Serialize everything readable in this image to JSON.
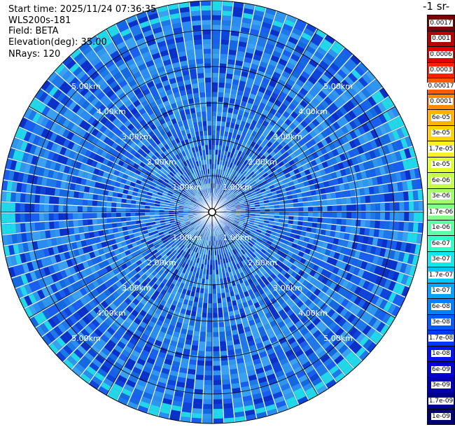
{
  "header": {
    "start_time": "Start time: 2025/11/24 07:36:35",
    "device": "WLS200s-181",
    "field": "Field: BETA",
    "elevation": "Elevation(deg): 35.00",
    "nrays": "NRays: 120"
  },
  "colorbar": {
    "unit": "-1 sr-",
    "labels": [
      "0.0017",
      "0.001",
      "0.0006",
      "0.0003",
      "0.00017",
      "0.0001",
      "6e-05",
      "3e-05",
      "1.7e-05",
      "1e-05",
      "6e-06",
      "3e-06",
      "1.7e-06",
      "1e-06",
      "6e-07",
      "3e-07",
      "1.7e-07",
      "1e-07",
      "6e-08",
      "3e-08",
      "1.7e-08",
      "1e-08",
      "6e-09",
      "3e-09",
      "1.7e-09",
      "1e-09"
    ],
    "colors": [
      "#7d0000",
      "#b40000",
      "#e00000",
      "#ff2000",
      "#ff5a00",
      "#ff8c00",
      "#ffb400",
      "#ffd200",
      "#ffee20",
      "#e2ff30",
      "#c4ff4c",
      "#a4ff6a",
      "#84ff8a",
      "#5cffa4",
      "#30ffcc",
      "#10e8ee",
      "#00c8ff",
      "#00a4ff",
      "#0080ff",
      "#005cff",
      "#0038ff",
      "#0014f0",
      "#0000d0",
      "#0000b0",
      "#000090",
      "#000070"
    ]
  },
  "chart_data": {
    "type": "heatmap",
    "projection": "polar-ppi",
    "field": "BETA",
    "elevation_deg": 35.0,
    "n_rays": 120,
    "range_rings_km": [
      1.0,
      2.0,
      3.0,
      4.0,
      5.0
    ],
    "ring_labels": [
      "1.00km",
      "2.00km",
      "3.00km",
      "4.00km",
      "5.00km"
    ],
    "dominant_value": "1e-07 to 3e-08"
  }
}
